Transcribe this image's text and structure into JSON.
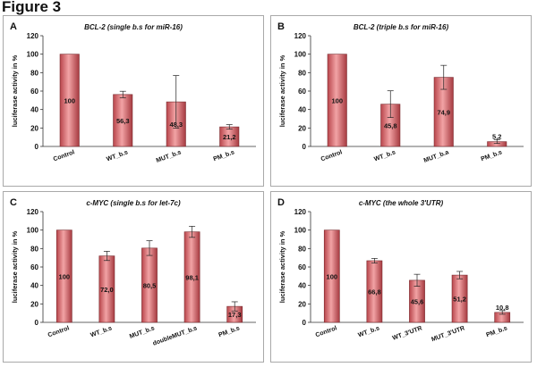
{
  "figure_title": "Figure 3",
  "chart_data": [
    {
      "panel": "A",
      "type": "bar",
      "title": "BCL-2 (single b.s for miR-16)",
      "categories": [
        "Control",
        "WT_b.s",
        "MUT_b.s",
        "PM_b.s"
      ],
      "values": [
        100,
        56.3,
        48.3,
        21.2
      ],
      "value_labels": [
        "100",
        "56,3",
        "48,3",
        "21,2"
      ],
      "errors": [
        0,
        3.5,
        28.5,
        2.5
      ],
      "ylabel": "luciferase activity in %",
      "ylim": [
        0,
        120
      ],
      "yticks": [
        "0",
        "20",
        "40",
        "60",
        "80",
        "100",
        "120"
      ],
      "bar_color": "#d9686c"
    },
    {
      "panel": "B",
      "type": "bar",
      "title": "BCL-2 (triple b.s for miR-16)",
      "categories": [
        "Control",
        "WT_b.s",
        "MUT_b.a",
        "PM_b.s"
      ],
      "values": [
        100,
        45.8,
        74.9,
        5.2
      ],
      "value_labels": [
        "100",
        "45,8",
        "74,9",
        "5,2"
      ],
      "errors": [
        0,
        14.5,
        13,
        2
      ],
      "ylabel": "luciferase activity in %",
      "ylim": [
        0,
        120
      ],
      "yticks": [
        "0",
        "20",
        "40",
        "60",
        "80",
        "100",
        "120"
      ],
      "bar_color": "#d9686c"
    },
    {
      "panel": "C",
      "type": "bar",
      "title": "c-MYC (single b.s for let-7c)",
      "categories": [
        "Control",
        "WT_b.s",
        "MUT_b.s",
        "doubleMUT_b.s",
        "PM_b.s"
      ],
      "values": [
        100,
        72.0,
        80.5,
        98.1,
        17.3
      ],
      "value_labels": [
        "100",
        "72,0",
        "80,5",
        "98,1",
        "17,3"
      ],
      "errors": [
        0,
        5,
        8,
        6,
        5
      ],
      "ylabel": "luciferase activity in %",
      "ylim": [
        0,
        120
      ],
      "yticks": [
        "0",
        "20",
        "40",
        "60",
        "80",
        "100",
        "120"
      ],
      "bar_color": "#d9686c"
    },
    {
      "panel": "D",
      "type": "bar",
      "title": "c-MYC (the whole 3'UTR)",
      "categories": [
        "Control",
        "WT_b.s",
        "WT_3'UTR",
        "MUT_3'UTR",
        "PM_b.s"
      ],
      "values": [
        100,
        66.8,
        45.6,
        51.2,
        10.8
      ],
      "value_labels": [
        "100",
        "66,8",
        "45,6",
        "51,2",
        "10,8"
      ],
      "errors": [
        0,
        2.5,
        6.5,
        4,
        2
      ],
      "ylabel": "luciferase activity in %",
      "ylim": [
        0,
        120
      ],
      "yticks": [
        "0",
        "20",
        "40",
        "60",
        "80",
        "100",
        "120"
      ],
      "bar_color": "#d9686c"
    }
  ]
}
